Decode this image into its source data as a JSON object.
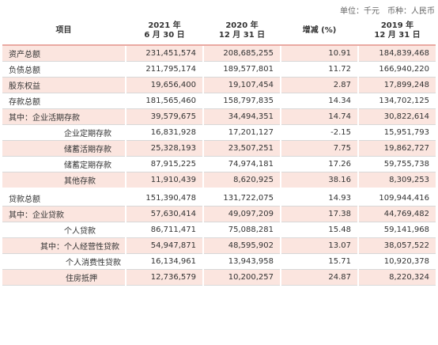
{
  "unit_line": "单位：千元　币种：人民币",
  "header": {
    "item": "项目",
    "col1": [
      "2021 年",
      "6 月 30 日"
    ],
    "col2": [
      "2020 年",
      "12 月 31 日"
    ],
    "col3": "增减 (%)",
    "col4": [
      "2019 年",
      "12 月 31 日"
    ]
  },
  "rows": [
    {
      "label": "资产总额",
      "v2021": "231,451,574",
      "v2020": "208,685,255",
      "change": "10.91",
      "v2019": "184,839,468"
    },
    {
      "label": "负债总额",
      "v2021": "211,795,174",
      "v2020": "189,577,801",
      "change": "11.72",
      "v2019": "166,940,220"
    },
    {
      "label": "股东权益",
      "v2021": "19,656,400",
      "v2020": "19,107,454",
      "change": "2.87",
      "v2019": "17,899,248"
    },
    {
      "label": "存款总额",
      "v2021": "181,565,460",
      "v2020": "158,797,835",
      "change": "14.34",
      "v2019": "134,702,125"
    },
    {
      "label": "其中：企业活期存款",
      "v2021": "39,579,675",
      "v2020": "34,494,351",
      "change": "14.74",
      "v2019": "30,822,614"
    },
    {
      "label": "企业定期存款",
      "v2021": "16,831,928",
      "v2020": "17,201,127",
      "change": "-2.15",
      "v2019": "15,951,793"
    },
    {
      "label": "储蓄活期存款",
      "v2021": "25,328,193",
      "v2020": "23,507,251",
      "change": "7.75",
      "v2019": "19,862,727"
    },
    {
      "label": "储蓄定期存款",
      "v2021": "87,915,225",
      "v2020": "74,974,181",
      "change": "17.26",
      "v2019": "59,755,738"
    },
    {
      "label": "其他存款",
      "v2021": "11,910,439",
      "v2020": "8,620,925",
      "change": "38.16",
      "v2019": "8,309,253"
    },
    {
      "label": "贷款总额",
      "v2021": "151,390,478",
      "v2020": "131,722,075",
      "change": "14.93",
      "v2019": "109,944,416"
    },
    {
      "label": "其中：企业贷款",
      "v2021": "57,630,414",
      "v2020": "49,097,209",
      "change": "17.38",
      "v2019": "44,769,482"
    },
    {
      "label": "个人贷款",
      "v2021": "86,711,471",
      "v2020": "75,088,281",
      "change": "15.48",
      "v2019": "59,141,968"
    },
    {
      "label": "其中：个人经营性贷款",
      "v2021": "54,947,871",
      "v2020": "48,595,902",
      "change": "13.07",
      "v2019": "38,057,522"
    },
    {
      "label": "个人消费性贷款",
      "v2021": "16,134,961",
      "v2020": "13,943,958",
      "change": "15.71",
      "v2019": "10,920,378"
    },
    {
      "label": "住房抵押",
      "v2021": "12,736,579",
      "v2020": "10,200,257",
      "change": "24.87",
      "v2019": "8,220,324"
    }
  ]
}
